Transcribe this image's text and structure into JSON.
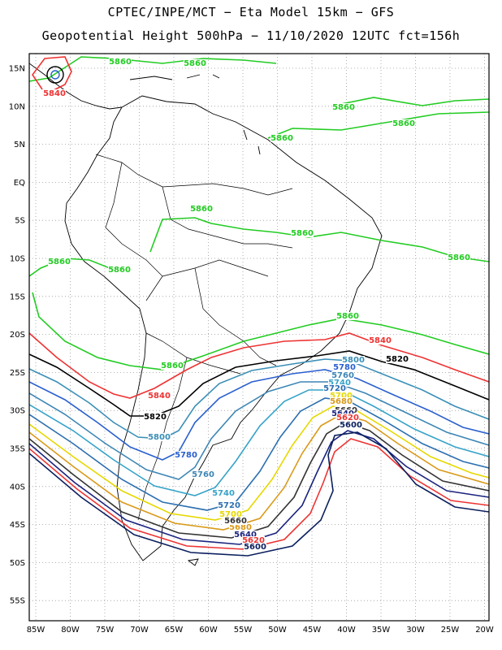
{
  "title_line1": "CPTEC/INPE/MCT −  Eta Model 15km − GFS",
  "title_line2": "Geopotential Height 500hPa − 11/10/2020 12UTC fct=156h",
  "lat_labels": [
    "15N",
    "10N",
    "5N",
    "EQ",
    "5S",
    "10S",
    "15S",
    "20S",
    "25S",
    "30S",
    "35S",
    "40S",
    "45S",
    "50S",
    "55S"
  ],
  "lon_labels": [
    "85W",
    "80W",
    "75W",
    "70W",
    "65W",
    "60W",
    "55W",
    "50W",
    "45W",
    "40W",
    "35W",
    "30W",
    "25W",
    "20W"
  ],
  "contours": [
    {
      "level": "5860",
      "color": "#22cc22"
    },
    {
      "level": "5840",
      "color": "#ee3333"
    },
    {
      "level": "5820",
      "color": "#000000"
    },
    {
      "level": "5800",
      "color": "#3a8fb7"
    },
    {
      "level": "5780",
      "color": "#2a5fcf"
    },
    {
      "level": "5760",
      "color": "#3d86b5"
    },
    {
      "level": "5740",
      "color": "#36a3c9"
    },
    {
      "level": "5720",
      "color": "#2c6fb0"
    },
    {
      "level": "5700",
      "color": "#e6d800"
    },
    {
      "level": "5680",
      "color": "#d99a1a"
    },
    {
      "level": "5660",
      "color": "#333333"
    },
    {
      "level": "5640",
      "color": "#1a237e"
    },
    {
      "level": "5620",
      "color": "#ee3333"
    },
    {
      "level": "5600",
      "color": "#0b1f5e"
    }
  ]
}
